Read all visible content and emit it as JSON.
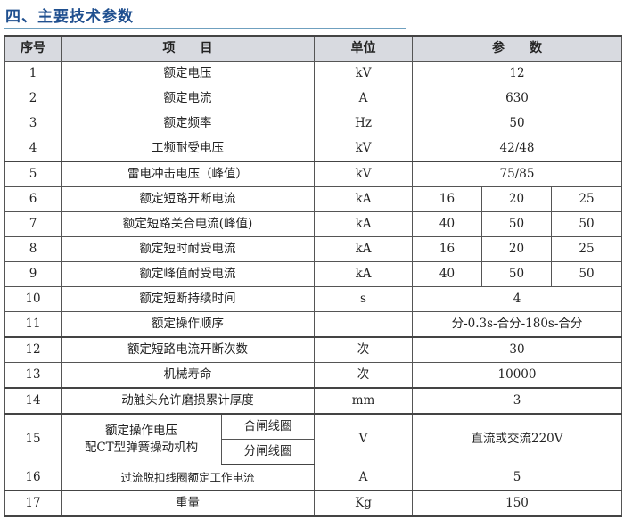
{
  "title": "四、主要技术参数",
  "headers": [
    "序号",
    "项　　目",
    "单位",
    "参　　数"
  ],
  "rows": [
    {
      "no": "1",
      "item": "额定电压",
      "unit": "kV",
      "values": [
        "12"
      ]
    },
    {
      "no": "2",
      "item": "额定电流",
      "unit": "A",
      "values": [
        "630"
      ]
    },
    {
      "no": "3",
      "item": "额定频率",
      "unit": "Hz",
      "values": [
        "50"
      ]
    },
    {
      "no": "4",
      "item": "工频耐受电压",
      "unit": "kV",
      "values": [
        "42/48"
      ]
    },
    {
      "no": "5",
      "item": "雷电冲击电压（峰值）",
      "unit": "kV",
      "values": [
        "75/85"
      ]
    },
    {
      "no": "6",
      "item": "额定短路开断电流",
      "unit": "kA",
      "values": [
        "16",
        "20",
        "25"
      ]
    },
    {
      "no": "7",
      "item": "额定短路关合电流(峰值)",
      "unit": "kA",
      "values": [
        "40",
        "50",
        "50"
      ]
    },
    {
      "no": "8",
      "item": "额定短时耐受电流",
      "unit": "kA",
      "values": [
        "16",
        "20",
        "25"
      ]
    },
    {
      "no": "9",
      "item": "额定峰值耐受电流",
      "unit": "kA",
      "values": [
        "40",
        "50",
        "50"
      ]
    },
    {
      "no": "10",
      "item": "额定短断持续时间",
      "unit": "s",
      "values": [
        "4"
      ]
    },
    {
      "no": "11",
      "item": "额定操作顺序",
      "unit": "",
      "values": [
        "分-0.3s-合分-180s-合分"
      ]
    },
    {
      "no": "12",
      "item": "额定短路电流开断次数",
      "unit": "次",
      "values": [
        "30"
      ]
    },
    {
      "no": "13",
      "item": "机械寿命",
      "unit": "次",
      "values": [
        "10000"
      ]
    },
    {
      "no": "14",
      "item": "动触头允许磨损累计厚度",
      "unit": "mm",
      "values": [
        "3"
      ]
    }
  ],
  "row15": {
    "no": "15",
    "item_line1": "额定操作电压",
    "item_line2": "配CT型弹簧操动机构",
    "sub1": "合闸线圈",
    "sub2": "分闸线圈",
    "unit": "V",
    "value": "直流或交流220V"
  },
  "row16": {
    "no": "16",
    "item": "过流脱扣线圈额定工作电流",
    "unit": "A",
    "value": "5"
  },
  "row17": {
    "no": "17",
    "item": "重量",
    "unit": "Kg",
    "value": "150"
  }
}
